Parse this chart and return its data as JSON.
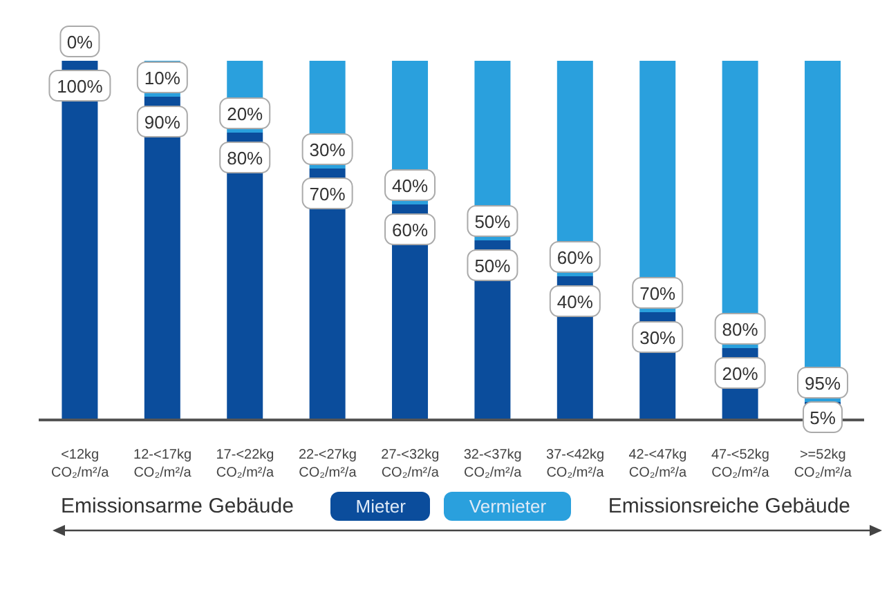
{
  "chart_data": {
    "type": "bar",
    "stacked": true,
    "legend": "bottom",
    "grid": false,
    "categories": [
      "<12kg\nCO₂/m²/a",
      "12-<17kg\nCO₂/m²/a",
      "17-<22kg\nCO₂/m²/a",
      "22-<27kg\nCO₂/m²/a",
      "27-<32kg\nCO₂/m²/a",
      "32-<37kg\nCO₂/m²/a",
      "37-<42kg\nCO₂/m²/a",
      "42-<47kg\nCO₂/m²/a",
      "47-<52kg\nCO₂/m²/a",
      ">=52kg\nCO₂/m²/a"
    ],
    "series": [
      {
        "name": "Mieter",
        "color": "#0b4d9c",
        "values": [
          100,
          90,
          80,
          70,
          60,
          50,
          40,
          30,
          20,
          5
        ],
        "value_labels": [
          "100%",
          "90%",
          "80%",
          "70%",
          "60%",
          "50%",
          "40%",
          "30%",
          "20%",
          "5%"
        ]
      },
      {
        "name": "Vermieter",
        "color": "#2aa0dd",
        "values": [
          0,
          10,
          20,
          30,
          40,
          50,
          60,
          70,
          80,
          95
        ],
        "value_labels": [
          "0%",
          "10%",
          "20%",
          "30%",
          "40%",
          "50%",
          "60%",
          "70%",
          "80%",
          "95%"
        ]
      }
    ],
    "annotations": [
      "Emissionsarme Gebäude",
      "Emissionsreiche Gebäude"
    ]
  }
}
